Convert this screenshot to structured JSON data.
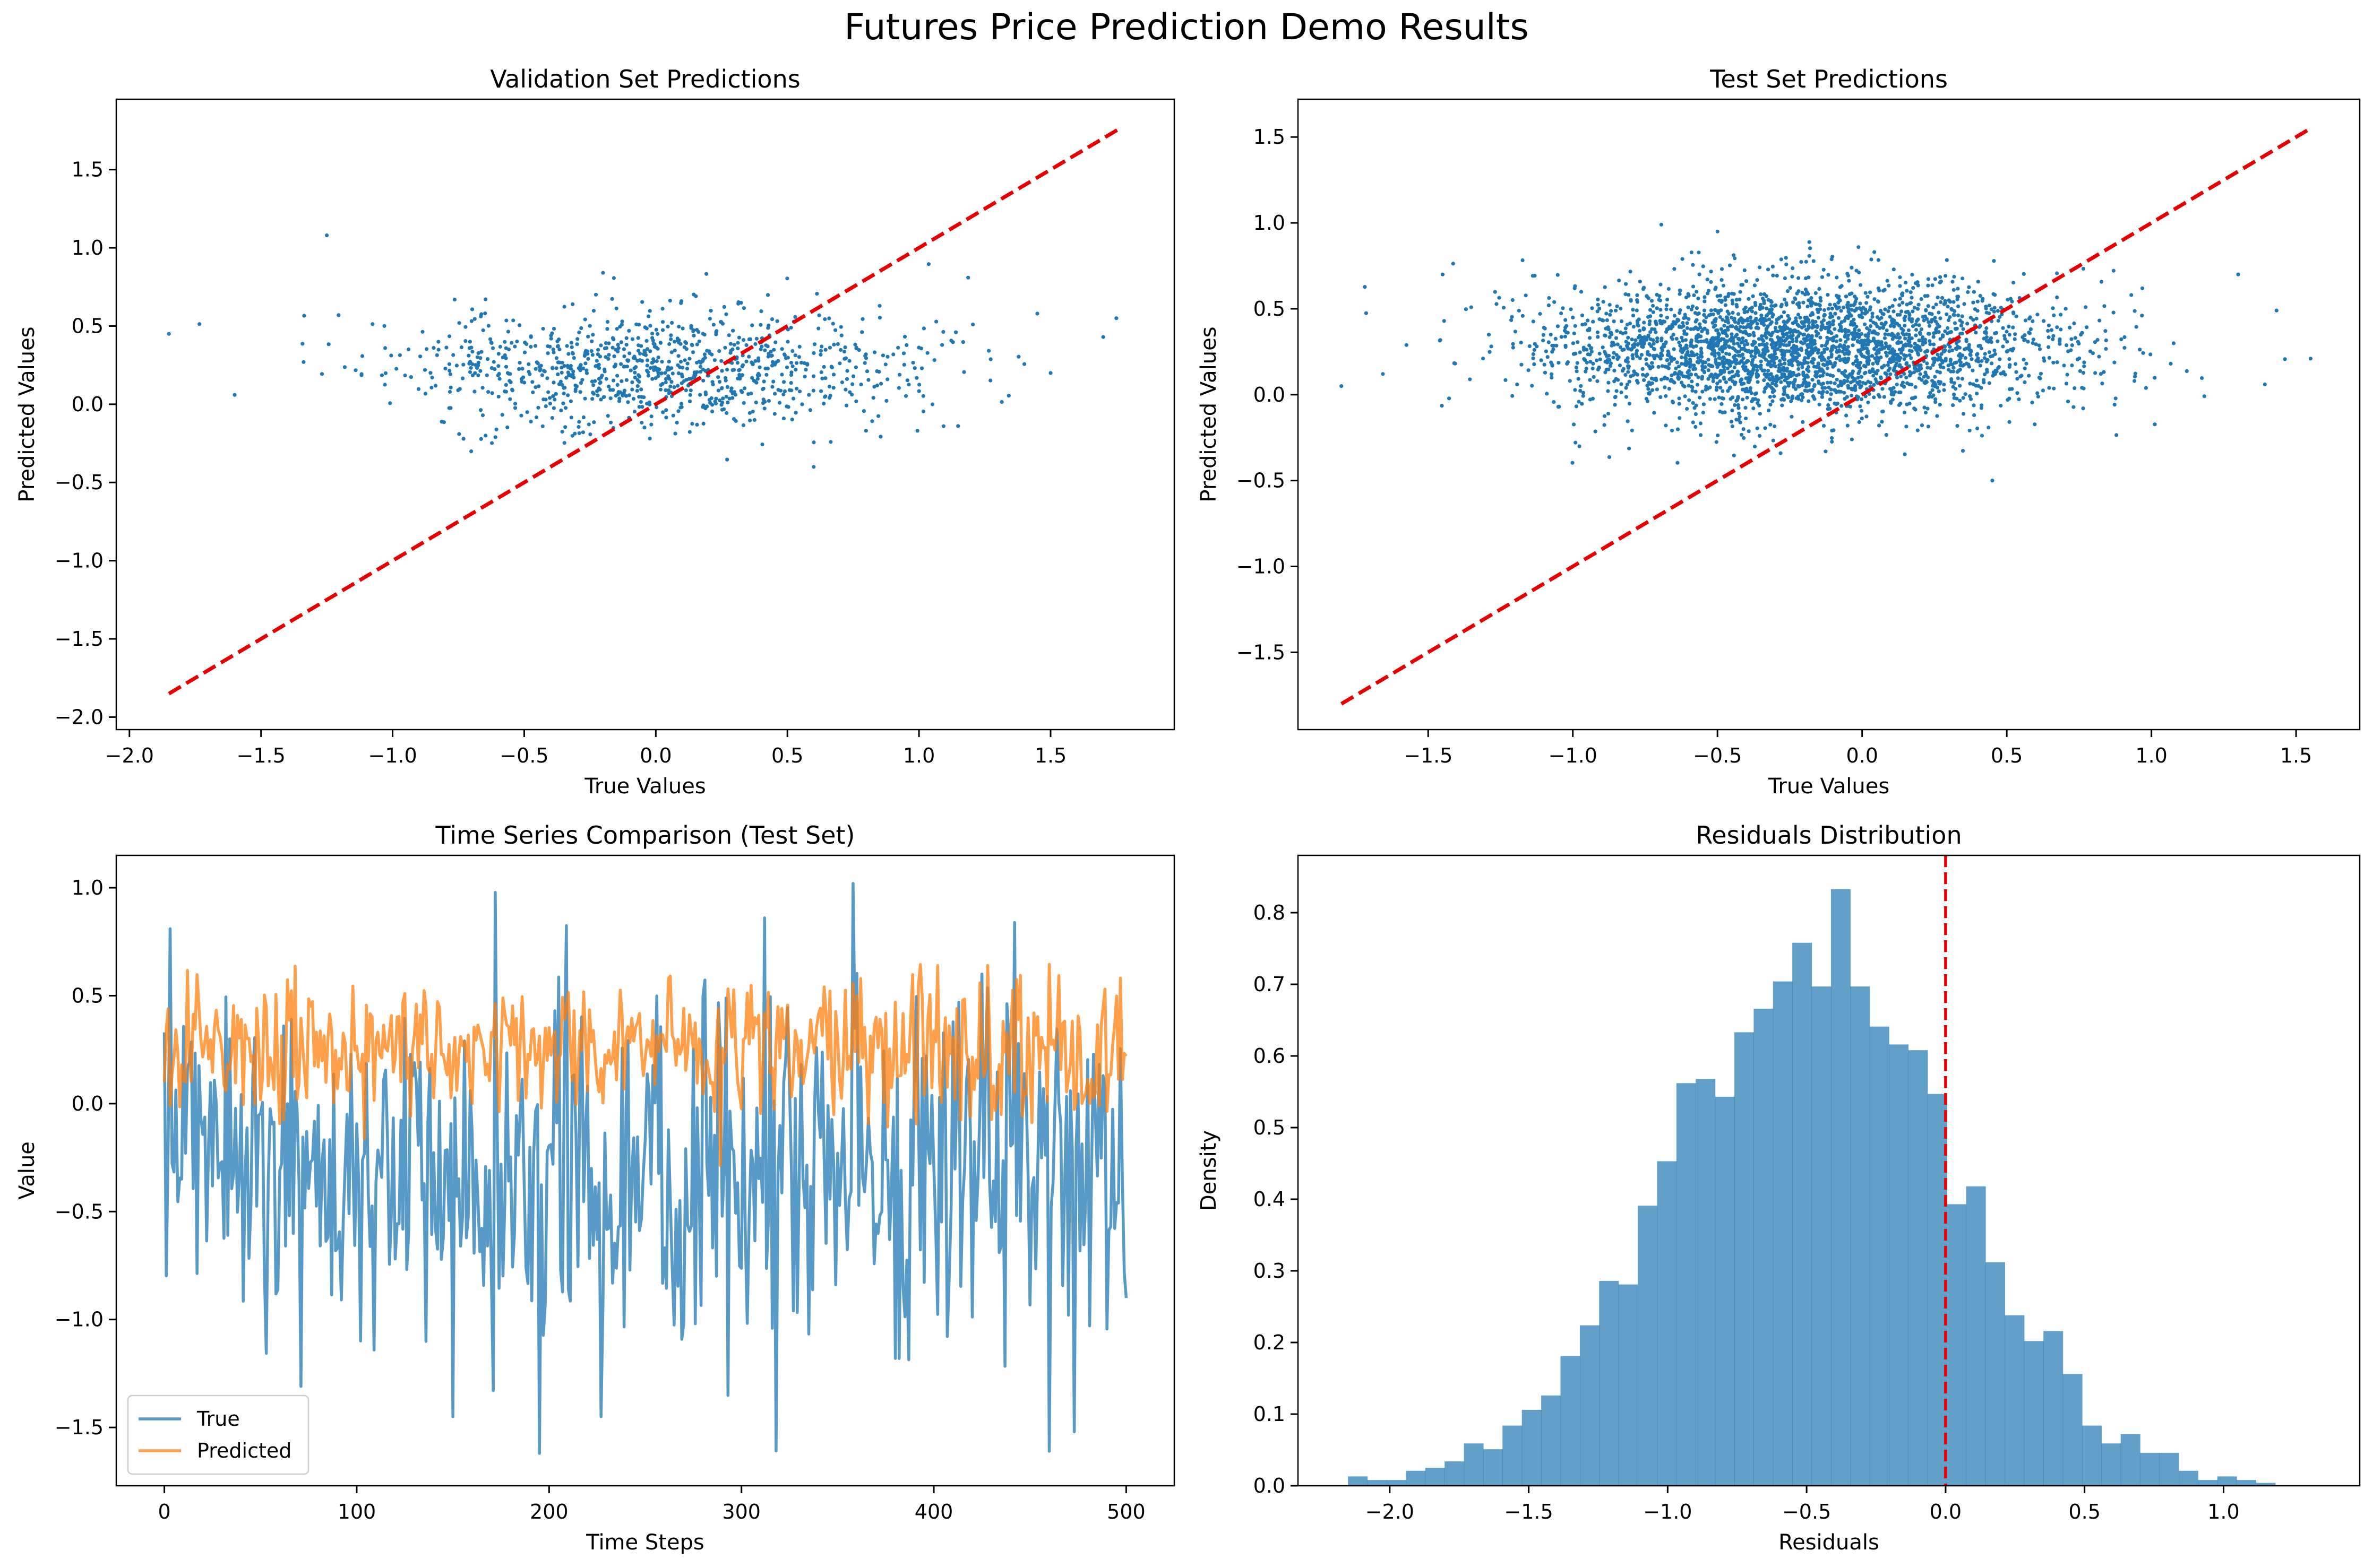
{
  "figure": {
    "suptitle": "Futures Price Prediction Demo Results"
  },
  "colors": {
    "points": "#1f77b4",
    "true_line": "#1f77b4",
    "pred_line": "#ff7f0e",
    "ref_line": "#e60000",
    "hist": "#1f77b4"
  },
  "chart_data": [
    {
      "type": "scatter",
      "title": "Validation Set Predictions",
      "xlabel": "True Values",
      "ylabel": "Predicted Values",
      "xlim": [
        -2.05,
        1.97
      ],
      "ylim": [
        -2.08,
        1.95
      ],
      "xticks": [
        -2.0,
        -1.5,
        -1.0,
        -0.5,
        0.0,
        0.5,
        1.0,
        1.5
      ],
      "yticks": [
        -2.0,
        -1.5,
        -1.0,
        -0.5,
        0.0,
        0.5,
        1.0,
        1.5
      ],
      "points": {
        "n": 1000,
        "x_mean": 0.0,
        "x_sd": 0.5,
        "y_mean": 0.24,
        "y_sd": 0.19,
        "marker_color": "#1f77b4",
        "seed": 11,
        "notable": [
          [
            -1.85,
            0.45
          ],
          [
            -1.6,
            0.06
          ],
          [
            -1.25,
            1.08
          ],
          [
            1.75,
            0.55
          ],
          [
            1.7,
            0.43
          ],
          [
            1.5,
            0.2
          ],
          [
            0.6,
            -0.4
          ]
        ]
      },
      "reference_line": {
        "x": [
          -1.85,
          1.76
        ],
        "y": [
          -1.85,
          1.76
        ],
        "style": "dashed",
        "color": "#e60000"
      },
      "grid": false
    },
    {
      "type": "scatter",
      "title": "Test Set Predictions",
      "xlabel": "True Values",
      "ylabel": "Predicted Values",
      "xlim": [
        -1.95,
        1.72
      ],
      "ylim": [
        -1.95,
        1.72
      ],
      "xticks": [
        -1.5,
        -1.0,
        -0.5,
        0.0,
        0.5,
        1.0,
        1.5
      ],
      "yticks": [
        -1.5,
        -1.0,
        -0.5,
        0.0,
        0.5,
        1.0,
        1.5
      ],
      "points": {
        "n": 3000,
        "x_mean": -0.2,
        "x_sd": 0.45,
        "y_mean": 0.27,
        "y_sd": 0.2,
        "marker_color": "#1f77b4",
        "seed": 29,
        "notable": [
          [
            -1.8,
            0.05
          ],
          [
            1.55,
            0.21
          ],
          [
            0.45,
            -0.5
          ],
          [
            -0.5,
            0.95
          ],
          [
            1.3,
            0.7
          ],
          [
            -1.45,
            0.7
          ]
        ]
      },
      "reference_line": {
        "x": [
          -1.8,
          1.55
        ],
        "y": [
          -1.8,
          1.55
        ],
        "style": "dashed",
        "color": "#e60000"
      },
      "grid": false
    },
    {
      "type": "line",
      "title": "Time Series Comparison (Test Set)",
      "xlabel": "Time Steps",
      "ylabel": "Value",
      "xlim": [
        -25,
        525
      ],
      "ylim": [
        -1.77,
        1.15
      ],
      "xticks": [
        0,
        100,
        200,
        300,
        400,
        500
      ],
      "yticks": [
        -1.5,
        -1.0,
        -0.5,
        0.0,
        0.5,
        1.0
      ],
      "legend": {
        "placement": "lower-left"
      },
      "series": [
        {
          "name": "True",
          "color": "#1f77b4",
          "n": 500,
          "mean": -0.3,
          "sd": 0.4,
          "seed": 5,
          "points": [
            [
              0,
              0.33
            ],
            [
              2,
              -0.18
            ],
            [
              3,
              0.81
            ],
            [
              71,
              -1.31
            ],
            [
              150,
              -1.45
            ],
            [
              195,
              -1.62
            ],
            [
              358,
              1.02
            ],
            [
              365,
              -0.27
            ],
            [
              460,
              -1.61
            ],
            [
              473,
              -1.52
            ],
            [
              500,
              -0.9
            ]
          ]
        },
        {
          "name": "Predicted",
          "color": "#ff7f0e",
          "n": 500,
          "mean": 0.25,
          "sd": 0.17,
          "seed": 17,
          "points": [
            [
              0,
              0.1
            ],
            [
              2,
              0.44
            ],
            [
              500,
              0.22
            ]
          ]
        }
      ],
      "grid": false
    },
    {
      "type": "bar",
      "subtype": "histogram",
      "title": "Residuals Distribution",
      "xlabel": "Residuals",
      "ylabel": "Density",
      "xlim": [
        -2.33,
        1.49
      ],
      "ylim": [
        0,
        0.88
      ],
      "xticks": [
        -2.0,
        -1.5,
        -1.0,
        -0.5,
        0.0,
        0.5,
        1.0
      ],
      "yticks": [
        0.0,
        0.1,
        0.2,
        0.3,
        0.4,
        0.5,
        0.6,
        0.7,
        0.8
      ],
      "bin_start": -2.15,
      "bin_width": 0.0695,
      "values": [
        0.013,
        0.008,
        0.008,
        0.021,
        0.025,
        0.034,
        0.059,
        0.051,
        0.084,
        0.106,
        0.126,
        0.181,
        0.224,
        0.286,
        0.281,
        0.391,
        0.453,
        0.562,
        0.568,
        0.543,
        0.633,
        0.666,
        0.704,
        0.758,
        0.697,
        0.833,
        0.697,
        0.641,
        0.616,
        0.608,
        0.547,
        0.393,
        0.418,
        0.312,
        0.238,
        0.202,
        0.216,
        0.156,
        0.084,
        0.059,
        0.072,
        0.046,
        0.046,
        0.021,
        0.008,
        0.013,
        0.008,
        0.004
      ],
      "reference_line": {
        "x": 0.0,
        "style": "dashed",
        "color": "#e60000"
      },
      "grid": false
    }
  ]
}
